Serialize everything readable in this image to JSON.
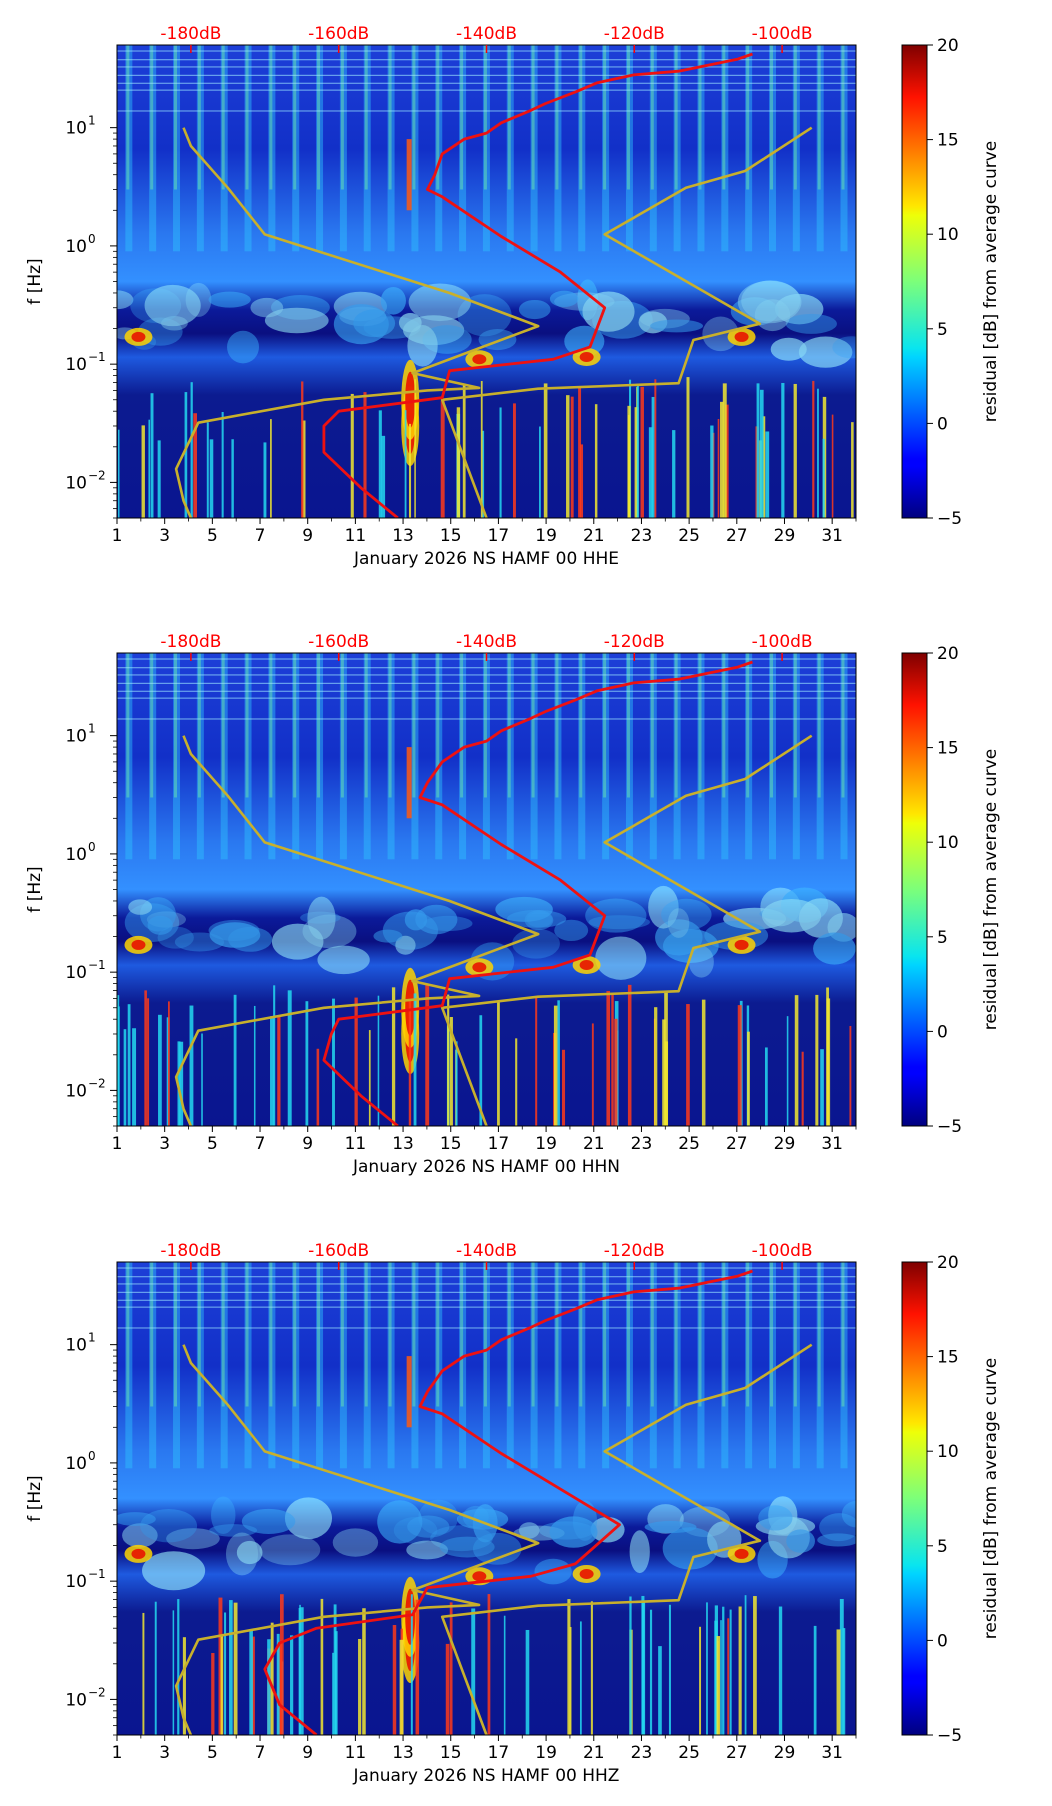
{
  "chart_data": [
    {
      "type": "heatmap",
      "channel": "HHE",
      "xlabel": "January 2026 NS HAMF 00 HHE",
      "ylabel": "f [Hz]",
      "x_ticks": [
        "1",
        "3",
        "5",
        "7",
        "9",
        "11",
        "13",
        "15",
        "17",
        "19",
        "21",
        "23",
        "25",
        "27",
        "29",
        "31"
      ],
      "x_range": [
        1,
        32
      ],
      "y_range_hz": [
        0.005,
        50
      ],
      "y_ticks": [
        {
          "value": 0.01,
          "base": "10",
          "exp": "−2"
        },
        {
          "value": 0.1,
          "base": "10",
          "exp": "−1"
        },
        {
          "value": 1,
          "base": "10",
          "exp": "0"
        },
        {
          "value": 10,
          "base": "10",
          "exp": "1"
        }
      ],
      "top_axis": {
        "labels": [
          "-180dB",
          "-160dB",
          "-140dB",
          "-120dB",
          "-100dB"
        ],
        "values": [
          -180,
          -160,
          -140,
          -120,
          -100
        ],
        "range_db": [
          -190,
          -90
        ],
        "color": "#ff0000"
      },
      "colorbar": {
        "label": "residual [dB] from average curve",
        "range": [
          -5,
          20
        ],
        "ticks": [
          "−5",
          "0",
          "5",
          "10",
          "15",
          "20"
        ],
        "tick_values": [
          -5,
          0,
          5,
          10,
          15,
          20
        ]
      },
      "noise_model_curves": {
        "color": "#c8b02c",
        "low_model": {
          "db": [
            -180,
            -181,
            -182,
            -179,
            -162,
            -148,
            -141,
            -150,
            -133,
            -145,
            -170,
            -175,
            -180,
            -181
          ],
          "freq_hz": [
            0.005,
            0.007,
            0.013,
            0.032,
            0.05,
            0.06,
            0.063,
            0.084,
            0.21,
            0.4,
            1.25,
            3.1,
            7.0,
            10.0
          ]
        },
        "high_model": {
          "db": [
            -140,
            -146,
            -133,
            -114,
            -112,
            -103,
            -124,
            -113,
            -105,
            -96
          ],
          "freq_hz": [
            0.005,
            0.05,
            0.062,
            0.069,
            0.16,
            0.22,
            1.25,
            3.1,
            4.3,
            10.0
          ]
        }
      },
      "median_psd_curve": {
        "color": "#ee1111",
        "db": [
          -152,
          -157,
          -162,
          -162,
          -160,
          -146,
          -145,
          -131,
          -126,
          -124,
          -130,
          -138,
          -146,
          -148,
          -147,
          -146,
          -143,
          -140,
          -138,
          -134,
          -132,
          -128,
          -125,
          -120,
          -114,
          -106,
          -104
        ],
        "freq_hz": [
          0.005,
          0.009,
          0.018,
          0.03,
          0.04,
          0.052,
          0.088,
          0.11,
          0.14,
          0.3,
          0.6,
          1.2,
          2.6,
          3.0,
          4.0,
          6.0,
          8.0,
          9.0,
          11.0,
          14.0,
          16.0,
          20.0,
          24.0,
          28.0,
          30.0,
          38.0,
          42.0
        ]
      }
    },
    {
      "type": "heatmap",
      "channel": "HHN",
      "xlabel": "January 2026 NS HAMF 00 HHN",
      "ylabel": "f [Hz]",
      "x_ticks": [
        "1",
        "3",
        "5",
        "7",
        "9",
        "11",
        "13",
        "15",
        "17",
        "19",
        "21",
        "23",
        "25",
        "27",
        "29",
        "31"
      ],
      "x_range": [
        1,
        32
      ],
      "y_range_hz": [
        0.005,
        50
      ],
      "y_ticks": [
        {
          "value": 0.01,
          "base": "10",
          "exp": "−2"
        },
        {
          "value": 0.1,
          "base": "10",
          "exp": "−1"
        },
        {
          "value": 1,
          "base": "10",
          "exp": "0"
        },
        {
          "value": 10,
          "base": "10",
          "exp": "1"
        }
      ],
      "top_axis": {
        "labels": [
          "-180dB",
          "-160dB",
          "-140dB",
          "-120dB",
          "-100dB"
        ],
        "values": [
          -180,
          -160,
          -140,
          -120,
          -100
        ],
        "range_db": [
          -190,
          -90
        ],
        "color": "#ff0000"
      },
      "colorbar": {
        "label": "residual [dB] from average curve",
        "range": [
          -5,
          20
        ],
        "ticks": [
          "−5",
          "0",
          "5",
          "10",
          "15",
          "20"
        ],
        "tick_values": [
          -5,
          0,
          5,
          10,
          15,
          20
        ]
      },
      "noise_model_curves": {
        "color": "#c8b02c",
        "low_model": {
          "db": [
            -180,
            -181,
            -182,
            -179,
            -162,
            -148,
            -141,
            -150,
            -133,
            -145,
            -170,
            -175,
            -180,
            -181
          ],
          "freq_hz": [
            0.005,
            0.007,
            0.013,
            0.032,
            0.05,
            0.06,
            0.063,
            0.084,
            0.21,
            0.4,
            1.25,
            3.1,
            7.0,
            10.0
          ]
        },
        "high_model": {
          "db": [
            -140,
            -146,
            -133,
            -114,
            -112,
            -103,
            -124,
            -113,
            -105,
            -96
          ],
          "freq_hz": [
            0.005,
            0.05,
            0.062,
            0.069,
            0.16,
            0.22,
            1.25,
            3.1,
            4.3,
            10.0
          ]
        }
      },
      "median_psd_curve": {
        "color": "#ee1111",
        "db": [
          -152,
          -157,
          -162,
          -161,
          -160,
          -146,
          -145,
          -131,
          -126,
          -124,
          -130,
          -138,
          -146,
          -149,
          -148,
          -146,
          -143,
          -140,
          -138,
          -134,
          -132,
          -128,
          -125,
          -120,
          -114,
          -106,
          -104
        ],
        "freq_hz": [
          0.005,
          0.009,
          0.018,
          0.03,
          0.04,
          0.052,
          0.088,
          0.11,
          0.14,
          0.3,
          0.6,
          1.2,
          2.6,
          3.0,
          4.0,
          6.0,
          8.0,
          9.0,
          11.0,
          14.0,
          16.0,
          20.0,
          24.0,
          28.0,
          30.0,
          38.0,
          42.0
        ]
      }
    },
    {
      "type": "heatmap",
      "channel": "HHZ",
      "xlabel": "January 2026 NS HAMF 00 HHZ",
      "ylabel": "f [Hz]",
      "x_ticks": [
        "1",
        "3",
        "5",
        "7",
        "9",
        "11",
        "13",
        "15",
        "17",
        "19",
        "21",
        "23",
        "25",
        "27",
        "29",
        "31"
      ],
      "x_range": [
        1,
        32
      ],
      "y_range_hz": [
        0.005,
        50
      ],
      "y_ticks": [
        {
          "value": 0.01,
          "base": "10",
          "exp": "−2"
        },
        {
          "value": 0.1,
          "base": "10",
          "exp": "−1"
        },
        {
          "value": 1,
          "base": "10",
          "exp": "0"
        },
        {
          "value": 10,
          "base": "10",
          "exp": "1"
        }
      ],
      "top_axis": {
        "labels": [
          "-180dB",
          "-160dB",
          "-140dB",
          "-120dB",
          "-100dB"
        ],
        "values": [
          -180,
          -160,
          -140,
          -120,
          -100
        ],
        "range_db": [
          -190,
          -90
        ],
        "color": "#ff0000"
      },
      "colorbar": {
        "label": "residual [dB] from average curve",
        "range": [
          -5,
          20
        ],
        "ticks": [
          "−5",
          "0",
          "5",
          "10",
          "15",
          "20"
        ],
        "tick_values": [
          -5,
          0,
          5,
          10,
          15,
          20
        ]
      },
      "noise_model_curves": {
        "color": "#c8b02c",
        "low_model": {
          "db": [
            -180,
            -181,
            -182,
            -179,
            -162,
            -148,
            -141,
            -150,
            -133,
            -145,
            -170,
            -175,
            -180,
            -181
          ],
          "freq_hz": [
            0.005,
            0.007,
            0.013,
            0.032,
            0.05,
            0.06,
            0.063,
            0.084,
            0.21,
            0.4,
            1.25,
            3.1,
            7.0,
            10.0
          ]
        },
        "high_model": {
          "db": [
            -140,
            -146,
            -133,
            -114,
            -112,
            -103,
            -124,
            -113,
            -105,
            -96
          ],
          "freq_hz": [
            0.005,
            0.05,
            0.062,
            0.069,
            0.16,
            0.22,
            1.25,
            3.1,
            4.3,
            10.0
          ]
        }
      },
      "median_psd_curve": {
        "color": "#ee1111",
        "db": [
          -163,
          -168,
          -170,
          -168,
          -163,
          -150,
          -148,
          -134,
          -128,
          -122,
          -130,
          -138,
          -146,
          -149,
          -148,
          -146,
          -143,
          -140,
          -138,
          -134,
          -132,
          -128,
          -125,
          -120,
          -114,
          -106,
          -104
        ],
        "freq_hz": [
          0.005,
          0.009,
          0.018,
          0.03,
          0.04,
          0.052,
          0.088,
          0.11,
          0.14,
          0.3,
          0.6,
          1.2,
          2.6,
          3.0,
          4.0,
          6.0,
          8.0,
          9.0,
          11.0,
          14.0,
          16.0,
          20.0,
          24.0,
          28.0,
          30.0,
          38.0,
          42.0
        ]
      }
    }
  ]
}
